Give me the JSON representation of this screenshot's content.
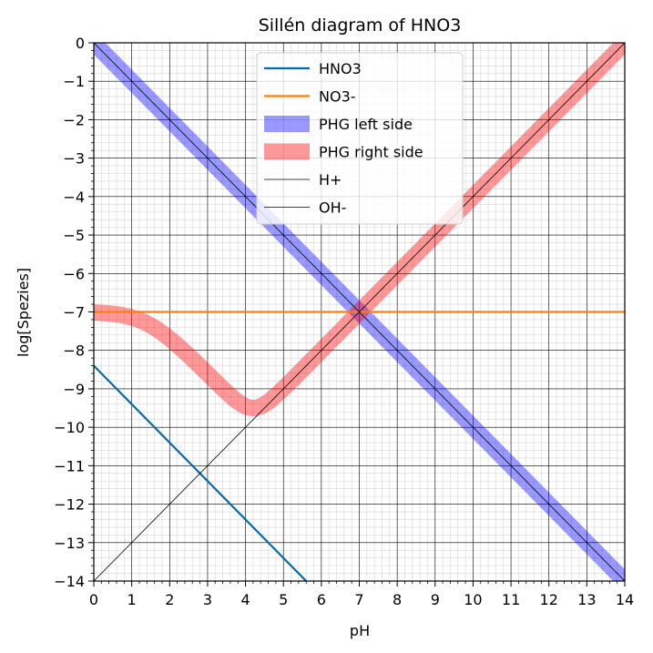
{
  "chart_data": {
    "type": "line",
    "title": "Sillén diagram of HNO3",
    "xlabel": "pH",
    "ylabel": "log[Spezies]",
    "xlim": [
      0,
      14
    ],
    "ylim": [
      -14,
      0
    ],
    "xticks": [
      0,
      1,
      2,
      3,
      4,
      5,
      6,
      7,
      8,
      9,
      10,
      11,
      12,
      13,
      14
    ],
    "yticks": [
      0,
      -1,
      -2,
      -3,
      -4,
      -5,
      -6,
      -7,
      -8,
      -9,
      -10,
      -11,
      -12,
      -13,
      -14
    ],
    "xtick_labels": [
      "0",
      "1",
      "2",
      "3",
      "4",
      "5",
      "6",
      "7",
      "8",
      "9",
      "10",
      "11",
      "12",
      "13",
      "14"
    ],
    "ytick_labels": [
      "0",
      "−1",
      "−2",
      "−3",
      "−4",
      "−5",
      "−6",
      "−7",
      "−8",
      "−9",
      "−10",
      "−11",
      "−12",
      "−13",
      "−14"
    ],
    "grid": "major and minor",
    "legend_position": "top-center",
    "log_total_concentration": -7,
    "pKa": -1.4,
    "pKw": 14,
    "series": [
      {
        "name": "HNO3",
        "kind": "species-acid",
        "color": "#0868ac",
        "points": [
          [
            0,
            -8.4
          ],
          [
            5.6,
            -14
          ]
        ]
      },
      {
        "name": "NO3-",
        "kind": "species-base",
        "color": "#ff7f0e",
        "points": [
          [
            0,
            -7.0
          ],
          [
            14,
            -7.0
          ]
        ]
      },
      {
        "name": "PHG left side",
        "kind": "band-left",
        "color": "#0000ff",
        "opacity": 0.4
      },
      {
        "name": "PHG right side",
        "kind": "band-right",
        "color": "#ff0000",
        "opacity": 0.4
      },
      {
        "name": "H+",
        "kind": "h",
        "color": "#000000",
        "points": [
          [
            0,
            0
          ],
          [
            14,
            -14
          ]
        ]
      },
      {
        "name": "OH-",
        "kind": "oh",
        "color": "#000000",
        "points": [
          [
            0,
            -14
          ],
          [
            14,
            0
          ]
        ]
      }
    ]
  }
}
